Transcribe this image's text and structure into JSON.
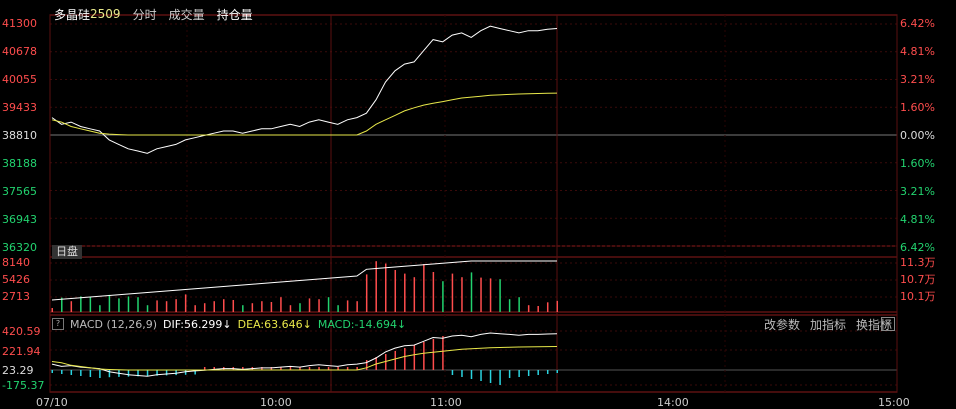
{
  "header": {
    "name": "多晶硅",
    "code": "2509",
    "tabs": [
      "分时",
      "成交量",
      "持仓量"
    ],
    "active_tab": 2
  },
  "price_axis": {
    "left": [
      "41300",
      "40678",
      "40055",
      "39433",
      "38810",
      "38188",
      "37565",
      "36943",
      "36320"
    ],
    "right": [
      "6.42%",
      "4.81%",
      "3.21%",
      "1.60%",
      "0.00%",
      "1.60%",
      "3.21%",
      "4.81%",
      "6.42%"
    ],
    "pre_close": 38810
  },
  "volume_panel": {
    "tag": "日盘",
    "left": [
      "8140",
      "5426",
      "2713"
    ],
    "right": [
      "11.3万",
      "10.7万",
      "10.1万"
    ]
  },
  "macd_panel": {
    "label": "MACD (12,26,9)",
    "dif": "DIF:56.299↓",
    "dea": "DEA:63.646↓",
    "macd": "MACD:-14.694↓",
    "left": [
      "420.59",
      "221.94",
      "23.29",
      "-175.37"
    ],
    "tools": [
      "改参数",
      "加指标",
      "换指标"
    ],
    "close": "×"
  },
  "time_axis": [
    "07/10",
    "10:00",
    "11:00",
    "14:00",
    "15:00"
  ],
  "colors": {
    "up": "#ff4d4d",
    "down": "#22d36f",
    "price_line": "#ffffff",
    "avg_line": "#e8e84a",
    "macd_pos": "#ff4d4d",
    "macd_neg": "#2ad4e0",
    "grid": "#2a0000",
    "frame": "#8b1a1a"
  },
  "chart_data": {
    "type": "line",
    "xlabel": "",
    "ylabel": "",
    "ylim": [
      36320,
      41300
    ],
    "series": [
      {
        "values": [
          39200,
          39050,
          39100,
          39000,
          38950,
          38900,
          38700,
          38600,
          38500,
          38450,
          38400,
          38500,
          38550,
          38600,
          38700,
          38750,
          38800,
          38850,
          38900,
          38900,
          38850,
          38900,
          38950,
          38950,
          39000,
          39050,
          39000,
          39100,
          39150,
          39100,
          39050,
          39150,
          39200,
          39300,
          39600,
          40000,
          40250,
          40400,
          40450,
          40700,
          40950,
          40900,
          41050,
          41100,
          41000,
          41150,
          41250,
          41200,
          41150,
          41100,
          41150,
          41150,
          41180,
          41200
        ]
      },
      {
        "values": [
          39150,
          39100,
          39000,
          38950,
          38900,
          38850,
          38830,
          38820,
          38810,
          38810,
          38810,
          38810,
          38810,
          38810,
          38810,
          38810,
          38810,
          38810,
          38810,
          38810,
          38810,
          38810,
          38810,
          38810,
          38810,
          38810,
          38810,
          38810,
          38810,
          38810,
          38810,
          38810,
          38810,
          38900,
          39050,
          39150,
          39250,
          39350,
          39420,
          39480,
          39520,
          39560,
          39600,
          39640,
          39660,
          39680,
          39700,
          39710,
          39720,
          39730,
          39735,
          39740,
          39745,
          39750
        ]
      }
    ]
  }
}
